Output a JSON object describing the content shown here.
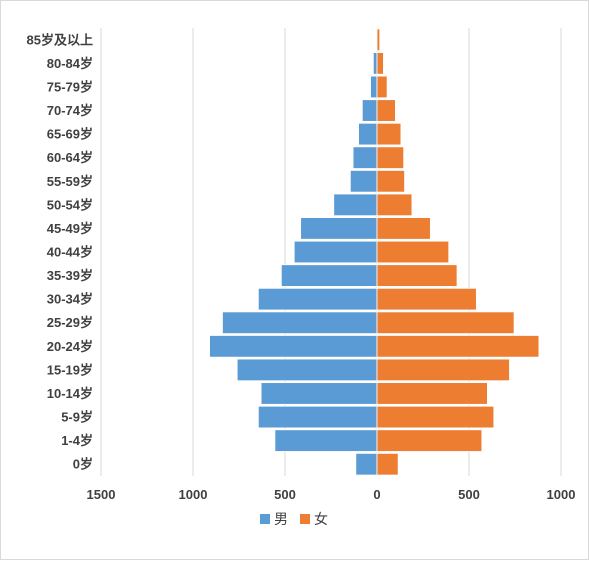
{
  "chart_data": {
    "type": "bar",
    "orientation": "horizontal",
    "categories": [
      "0岁",
      "1-4岁",
      "5-9岁",
      "10-14岁",
      "15-19岁",
      "20-24岁",
      "25-29岁",
      "30-34岁",
      "35-39岁",
      "40-44岁",
      "45-49岁",
      "50-54岁",
      "55-59岁",
      "60-64岁",
      "65-69岁",
      "70-74岁",
      "75-79岁",
      "80-84岁",
      "85岁及以上"
    ],
    "series": [
      {
        "name": "男",
        "color": "#5b9bd5",
        "values": [
          -115,
          -555,
          -645,
          -630,
          -760,
          -910,
          -840,
          -645,
          -520,
          -450,
          -415,
          -235,
          -145,
          -130,
          -100,
          -80,
          -35,
          -20,
          -5
        ]
      },
      {
        "name": "女",
        "color": "#ed7d31",
        "values": [
          115,
          570,
          635,
          600,
          720,
          880,
          745,
          540,
          435,
          390,
          290,
          190,
          150,
          145,
          130,
          100,
          55,
          35,
          15
        ]
      }
    ],
    "x_ticks": [
      {
        "value": -1500,
        "label": "1500"
      },
      {
        "value": -1000,
        "label": "1000"
      },
      {
        "value": -500,
        "label": "500"
      },
      {
        "value": 0,
        "label": "0"
      },
      {
        "value": 500,
        "label": "500"
      },
      {
        "value": 1000,
        "label": "1000"
      }
    ],
    "xlim": [
      -1500,
      1000
    ],
    "grid": true,
    "legend_position": "bottom",
    "title": "",
    "xlabel": "",
    "ylabel": ""
  }
}
